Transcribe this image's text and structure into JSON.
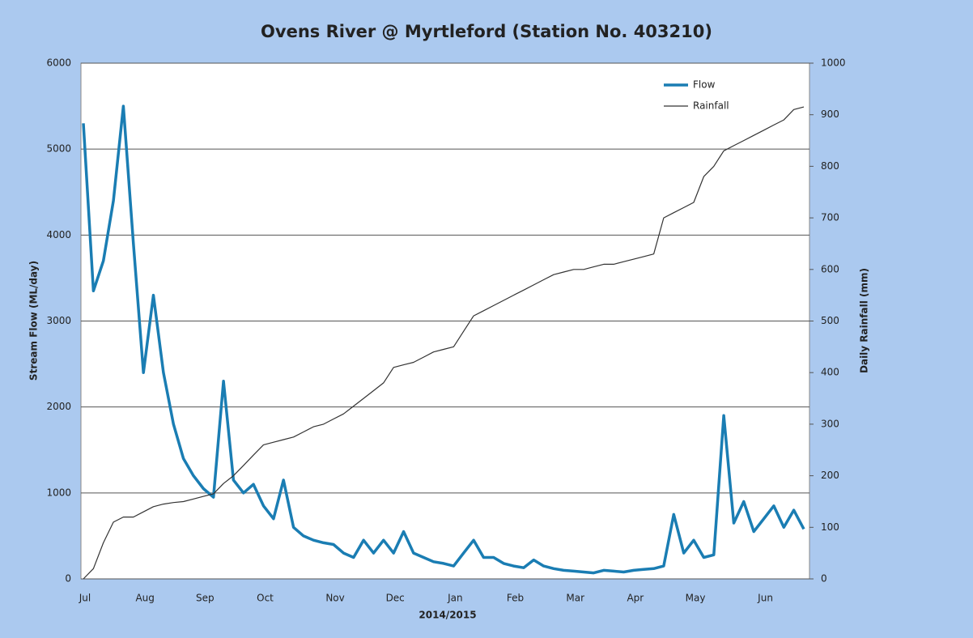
{
  "chart_data": {
    "type": "line",
    "title": "Ovens River @ Myrtleford (Station No. 403210)",
    "xlabel": "2014/2015",
    "ylabel": "Stream Flow (ML/day)",
    "y2label": "Daily Rainfall (mm)",
    "categories": [
      "Jul",
      null,
      null,
      null,
      null,
      null,
      "Aug",
      null,
      null,
      null,
      null,
      null,
      "Sep",
      null,
      null,
      null,
      null,
      null,
      "Oct",
      null,
      null,
      null,
      null,
      null,
      null,
      "Nov",
      null,
      null,
      null,
      null,
      null,
      "Dec",
      null,
      null,
      null,
      null,
      null,
      "Jan",
      null,
      null,
      null,
      null,
      null,
      "Feb",
      null,
      null,
      null,
      null,
      null,
      "Mar",
      null,
      null,
      null,
      null,
      null,
      "Apr",
      null,
      null,
      null,
      null,
      null,
      "May",
      null,
      null,
      null,
      null,
      null,
      null,
      "Jun",
      null,
      null,
      null,
      null
    ],
    "series": [
      {
        "name": "Flow",
        "color": "#1a7db3",
        "values": [
          5300,
          3350,
          3700,
          4400,
          5500,
          3900,
          2400,
          3300,
          2400,
          1800,
          1400,
          1200,
          1050,
          950,
          2300,
          1150,
          1000,
          1100,
          850,
          700,
          1150,
          600,
          500,
          450,
          420,
          400,
          300,
          250,
          450,
          300,
          450,
          300,
          550,
          300,
          250,
          200,
          180,
          150,
          300,
          450,
          250,
          250,
          180,
          150,
          130,
          220,
          150,
          120,
          100,
          90,
          80,
          70,
          100,
          90,
          80,
          100,
          110,
          120,
          150,
          750,
          300,
          450,
          250,
          280,
          1900,
          650,
          900,
          550,
          700,
          850,
          600,
          800,
          580
        ]
      },
      {
        "name": "Rainfall",
        "color": "#333333",
        "axis": "y2",
        "values": [
          0,
          20,
          70,
          110,
          120,
          120,
          130,
          140,
          145,
          148,
          150,
          155,
          160,
          165,
          185,
          200,
          220,
          240,
          260,
          265,
          270,
          275,
          285,
          295,
          300,
          310,
          320,
          335,
          350,
          365,
          380,
          410,
          415,
          420,
          430,
          440,
          445,
          450,
          480,
          510,
          520,
          530,
          540,
          550,
          560,
          570,
          580,
          590,
          595,
          600,
          600,
          605,
          610,
          610,
          615,
          620,
          625,
          630,
          700,
          710,
          720,
          730,
          780,
          800,
          830,
          840,
          850,
          860,
          870,
          880,
          890,
          910,
          915
        ]
      }
    ],
    "ylim": [
      0,
      6000
    ],
    "yticks": [
      0,
      1000,
      2000,
      3000,
      4000,
      5000,
      6000
    ],
    "y2lim": [
      0,
      1000
    ],
    "y2ticks": [
      0,
      100,
      200,
      300,
      400,
      500,
      600,
      700,
      800,
      900,
      1000
    ],
    "grid": true,
    "legend": "upper right"
  }
}
